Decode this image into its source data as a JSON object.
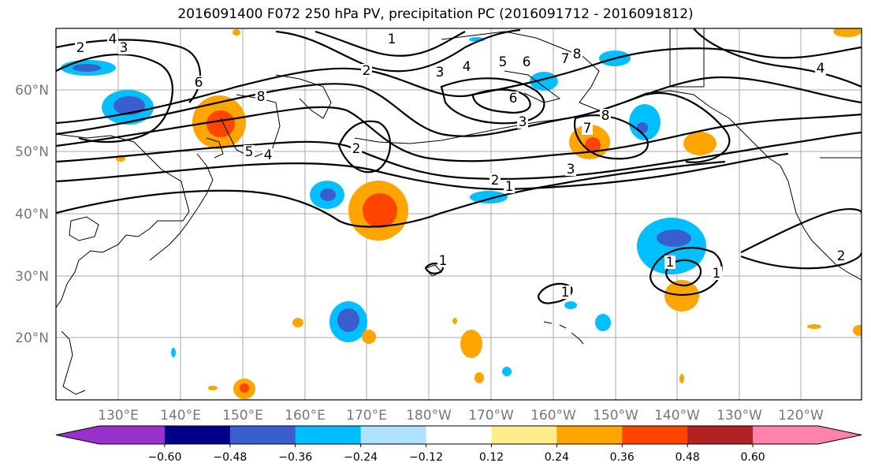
{
  "title": "2016091400 F072 250 hPa PV, precipitation PC (2016091712 - 2016091812)",
  "lon_labels": [
    "130°E",
    "140°E",
    "150°E",
    "160°E",
    "170°E",
    "180°W",
    "170°W",
    "160°W",
    "150°W",
    "140°W",
    "130°W",
    "120°W"
  ],
  "lat_labels": [
    "60°N",
    "50°N",
    "40°N",
    "30°N",
    "20°N"
  ],
  "colorbar": {
    "colors": [
      "#9932cc",
      "#00008b",
      "#3a5fcd",
      "#00bfff",
      "#b0e2ff",
      "#ffffff",
      "#ffec8b",
      "#ffa500",
      "#ff4500",
      "#b22222",
      "#ff82ab"
    ],
    "extend_min_color": "#9932cc",
    "extend_max_color": "#ff82ab",
    "tick_labels": [
      "−0.60",
      "−0.48",
      "−0.36",
      "−0.24",
      "−0.12",
      "0.12",
      "0.24",
      "0.36",
      "0.48",
      "0.60"
    ]
  },
  "contour_labels": [
    "4",
    "2",
    "3",
    "6",
    "8",
    "5",
    "4",
    "2",
    "1",
    "2",
    "3",
    "4",
    "5",
    "6",
    "7",
    "8",
    "6",
    "3",
    "2",
    "1",
    "3",
    "8",
    "7",
    "4",
    "1",
    "1",
    "1",
    "2",
    "1"
  ]
}
